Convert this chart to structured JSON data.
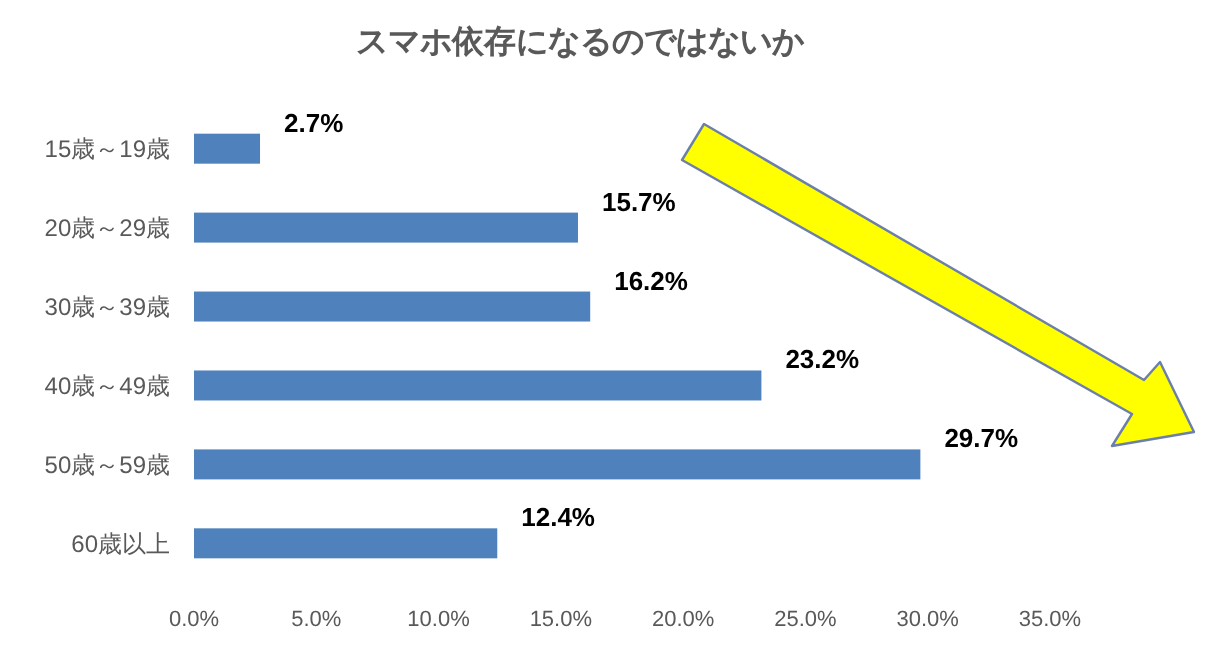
{
  "chart_data": {
    "type": "bar",
    "orientation": "horizontal",
    "title": "スマホ依存になるのではないか",
    "categories": [
      "15歳～19歳",
      "20歳～29歳",
      "30歳～39歳",
      "40歳～49歳",
      "50歳～59歳",
      "60歳以上"
    ],
    "values": [
      2.7,
      15.7,
      16.2,
      23.2,
      29.7,
      12.4
    ],
    "color": "#4f81bd",
    "xlim": [
      0,
      35
    ],
    "xticks": [
      {
        "value": 0,
        "label": "0.0%"
      },
      {
        "value": 5,
        "label": "5.0%"
      },
      {
        "value": 10,
        "label": "10.0%"
      },
      {
        "value": 15,
        "label": "15.0%"
      },
      {
        "value": 20,
        "label": "20.0%"
      },
      {
        "value": 25,
        "label": "25.0%"
      },
      {
        "value": 30,
        "label": "30.0%"
      },
      {
        "value": 35,
        "label": "35.0%"
      }
    ],
    "value_labels": [
      "2.7%",
      "15.7%",
      "16.2%",
      "23.2%",
      "29.7%",
      "12.4%"
    ],
    "grid": false
  }
}
